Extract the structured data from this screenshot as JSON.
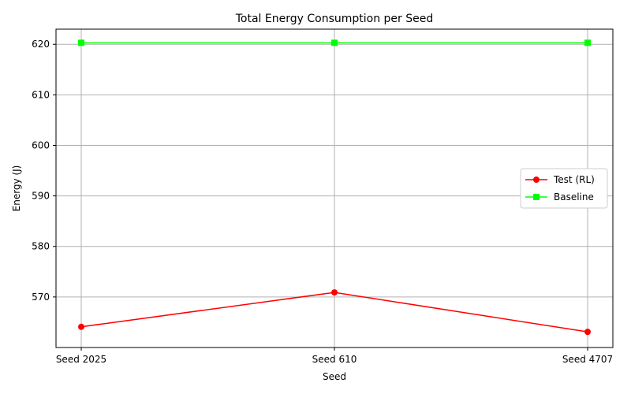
{
  "chart_data": {
    "type": "line",
    "title": "Total Energy Consumption per Seed",
    "xlabel": "Seed",
    "ylabel": "Energy (J)",
    "categories": [
      "Seed 2025",
      "Seed 610",
      "Seed 4707"
    ],
    "ylim": [
      560,
      623
    ],
    "yticks": [
      570,
      580,
      590,
      600,
      610,
      620
    ],
    "grid": true,
    "legend_position": "center-right",
    "series": [
      {
        "name": "Test (RL)",
        "values": [
          564.1,
          570.9,
          563.1
        ],
        "color": "#ff0000",
        "marker": "circle"
      },
      {
        "name": "Baseline",
        "values": [
          620.3,
          620.3,
          620.3
        ],
        "color": "#00ff00",
        "marker": "square"
      }
    ]
  }
}
